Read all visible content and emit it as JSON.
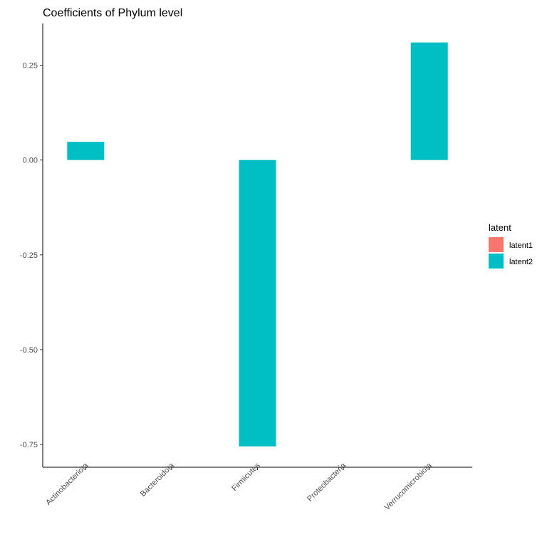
{
  "chart_data": {
    "type": "bar",
    "title": "Coefficients of Phylum level",
    "xlabel": "",
    "ylabel": "",
    "categories": [
      "Actinobacteriota",
      "Bacteroidota",
      "Firmicutes",
      "Proteobacteria",
      "Verrucomicrobiota"
    ],
    "series": [
      {
        "name": "latent1",
        "color": "#F8766D",
        "values": [
          0,
          0,
          0,
          0,
          0
        ]
      },
      {
        "name": "latent2",
        "color": "#00BFC4",
        "values": [
          0.048,
          0,
          -0.755,
          0,
          0.31
        ]
      }
    ],
    "ylim": [
      -0.81,
      0.36
    ],
    "yticks": [
      0.25,
      0.0,
      -0.25,
      -0.5,
      -0.75
    ],
    "ytick_labels": [
      "0.25",
      "0.00",
      "-0.25",
      "-0.50",
      "-0.75"
    ],
    "grid": false,
    "legend": {
      "title": "latent",
      "placement": "right"
    }
  }
}
